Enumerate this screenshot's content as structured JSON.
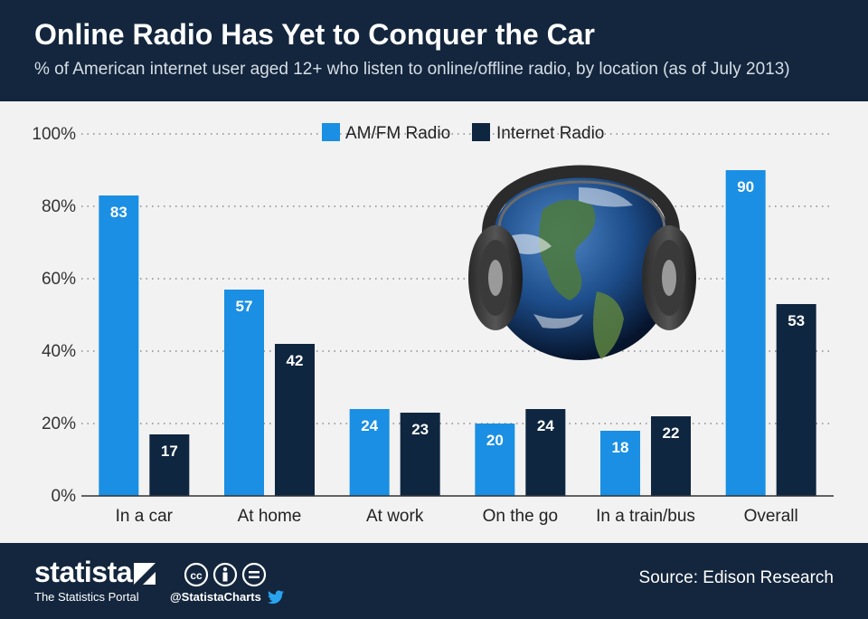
{
  "header": {
    "title": "Online Radio Has Yet to Conquer the Car",
    "subtitle": "% of American internet user aged 12+ who listen to online/offline radio, by location (as of July 2013)"
  },
  "chart_data": {
    "type": "bar",
    "categories": [
      "In a car",
      "At home",
      "At work",
      "On the go",
      "In a train/bus",
      "Overall"
    ],
    "series": [
      {
        "name": "AM/FM Radio",
        "color": "#1a8fe3",
        "values": [
          83,
          57,
          24,
          20,
          18,
          90
        ]
      },
      {
        "name": "Internet Radio",
        "color": "#0f2640",
        "values": [
          17,
          42,
          23,
          24,
          22,
          53
        ]
      }
    ],
    "y_ticks": [
      "0%",
      "20%",
      "40%",
      "60%",
      "80%",
      "100%"
    ],
    "ylim": [
      0,
      100
    ],
    "grid": true,
    "legend": "top-center"
  },
  "colors": {
    "header_bg": "#13263d",
    "plot_bg": "#f2f2f2",
    "am_fm": "#1a8fe3",
    "internet": "#0f2640"
  },
  "illustration": {
    "icon": "globe-with-headphones-icon"
  },
  "footer": {
    "brand": "statista",
    "tagline": "The Statistics Portal",
    "handle": "@StatistaCharts",
    "source": "Source: Edison Research",
    "icons": [
      "creative-commons-icon",
      "attribution-icon",
      "no-derivatives-icon",
      "twitter-icon"
    ]
  }
}
